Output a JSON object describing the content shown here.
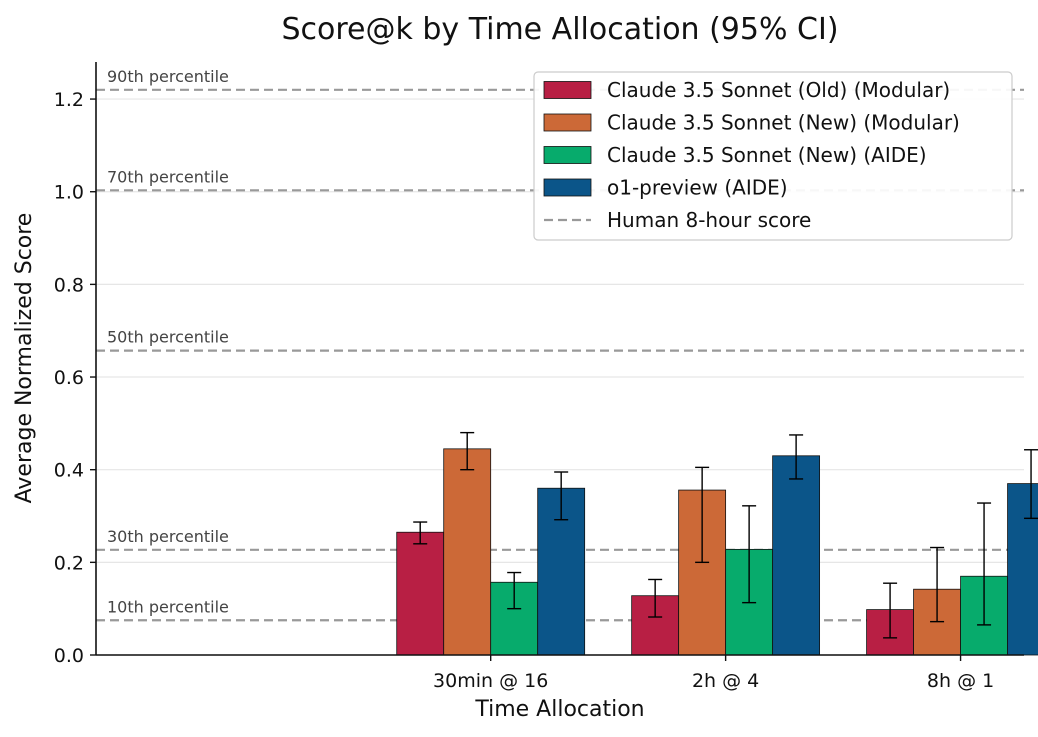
{
  "chart_data": {
    "type": "bar",
    "title": "Score@k by Time Allocation (95% CI)",
    "xlabel": "Time Allocation",
    "ylabel": "Average Normalized Score",
    "ylim": [
      0,
      1.28
    ],
    "y_ticks": [
      0.0,
      0.2,
      0.4,
      0.6,
      0.8,
      1.0,
      1.2
    ],
    "y_tick_labels": [
      "0.0",
      "0.2",
      "0.4",
      "0.6",
      "0.8",
      "1.0",
      "1.2"
    ],
    "categories": [
      "30min @ 16",
      "2h @ 4",
      "8h @ 1"
    ],
    "category_slots": [
      1,
      2,
      3
    ],
    "x_slot_range": [
      -0.68,
      3.27
    ],
    "series": [
      {
        "name": "Claude 3.5 Sonnet (Old) (Modular)",
        "color": "#b81f44",
        "values": [
          0.265,
          0.128,
          0.098
        ],
        "ci_low": [
          0.24,
          0.082,
          0.037
        ],
        "ci_high": [
          0.287,
          0.163,
          0.155
        ]
      },
      {
        "name": "Claude 3.5 Sonnet (New) (Modular)",
        "color": "#cc6937",
        "values": [
          0.445,
          0.356,
          0.142
        ],
        "ci_low": [
          0.4,
          0.2,
          0.072
        ],
        "ci_high": [
          0.48,
          0.405,
          0.232
        ]
      },
      {
        "name": "Claude 3.5 Sonnet (New) (AIDE)",
        "color": "#07ab6c",
        "values": [
          0.157,
          0.228,
          0.17
        ],
        "ci_low": [
          0.1,
          0.113,
          0.065
        ],
        "ci_high": [
          0.178,
          0.322,
          0.328
        ]
      },
      {
        "name": "o1-preview (AIDE)",
        "color": "#0b5589",
        "values": [
          0.36,
          0.43,
          0.37
        ],
        "ci_low": [
          0.292,
          0.38,
          0.295
        ],
        "ci_high": [
          0.395,
          0.475,
          0.443
        ]
      }
    ],
    "reference_lines": [
      {
        "label": "90th percentile",
        "value": 1.22
      },
      {
        "label": "70th percentile",
        "value": 1.003
      },
      {
        "label": "50th percentile",
        "value": 0.657
      },
      {
        "label": "30th percentile",
        "value": 0.227
      },
      {
        "label": "10th percentile",
        "value": 0.075
      }
    ],
    "reference_legend": "Human 8-hour score",
    "reference_color": "#999999",
    "grid": "horizontal",
    "legend_position": "top-right"
  }
}
